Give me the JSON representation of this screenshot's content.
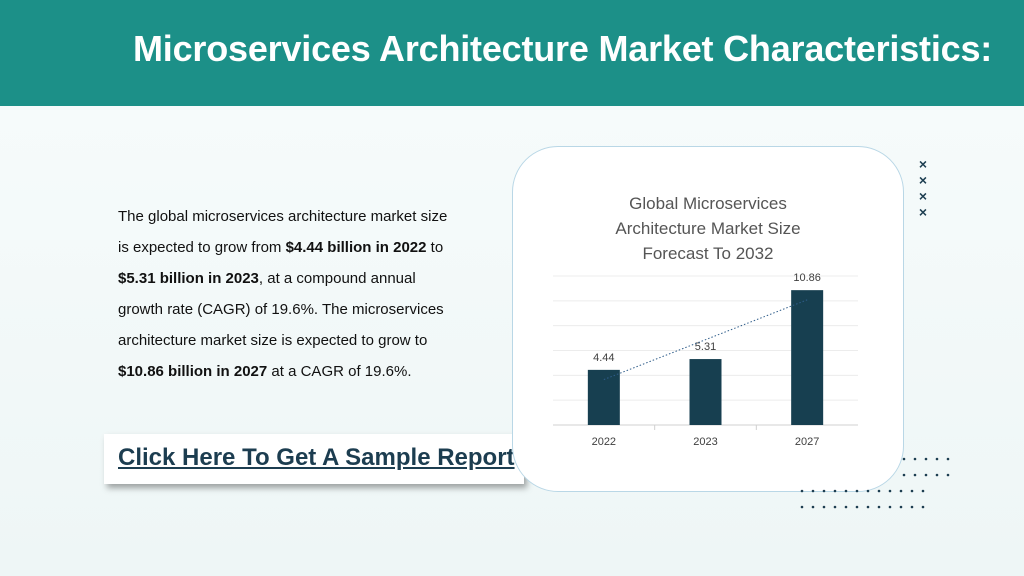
{
  "header": {
    "title": "Microservices Architecture Market Characteristics:"
  },
  "body": {
    "segments": [
      {
        "text": "The global microservices architecture market size is expected to grow from ",
        "bold": false
      },
      {
        "text": "$4.44 billion in 2022",
        "bold": true
      },
      {
        "text": " to ",
        "bold": false
      },
      {
        "text": "$5.31 billion in 2023",
        "bold": true
      },
      {
        "text": ", at a compound annual growth rate (CAGR) of 19.6%. The microservices architecture market size is expected to grow to ",
        "bold": false
      },
      {
        "text": "$10.86 billion in 2027",
        "bold": true
      },
      {
        "text": " at a CAGR of 19.6%.",
        "bold": false
      }
    ]
  },
  "cta": {
    "label": "Click Here To Get A Sample Report"
  },
  "decor": {
    "x_marks": [
      "×",
      "×",
      "×",
      "×"
    ],
    "accent_color": "#1c9088",
    "dark_color": "#1c3d50"
  },
  "chart_data": {
    "type": "bar",
    "title_lines": [
      "Global Microservices",
      "Architecture Market Size",
      "Forecast To 2032"
    ],
    "categories": [
      "2022",
      "2023",
      "2027"
    ],
    "values": [
      4.44,
      5.31,
      10.86
    ],
    "data_labels": [
      "4.44",
      "5.31",
      "10.86"
    ],
    "bar_color": "#173f50",
    "trendline": "dotted linear",
    "ylim": [
      0,
      12
    ],
    "grid": true,
    "xlabel": "",
    "ylabel": ""
  }
}
